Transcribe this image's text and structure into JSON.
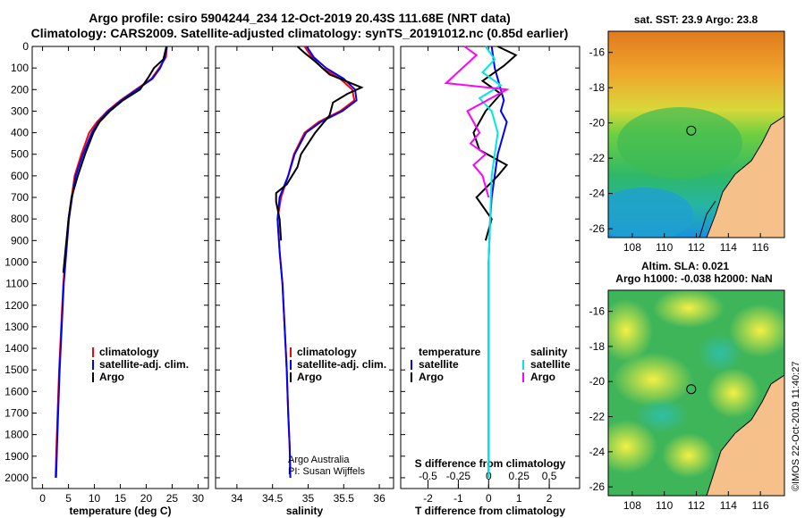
{
  "header": {
    "title_line1": "Argo profile: csiro 5904244_234 12-Oct-2019 20.43S 111.68E (NRT data)",
    "title_line2": "Climatology: CARS2009. Satellite-adjusted climatology: synTS_20191012.nc (0.85d earlier)"
  },
  "credits": {
    "program": "Argo Australia",
    "pi": "PI: Susan Wijffels",
    "stamp": "©IMOS 22-Oct-2019 11:40:27"
  },
  "colors": {
    "climatology": "#ff0000",
    "satellite_adj": "#0000ff",
    "argo": "#000000",
    "sat_salinity": "#00e5e5",
    "argo_salinity_diff": "#ff00ff",
    "land": "#f5c08a"
  },
  "chart_data": [
    {
      "type": "line",
      "name": "temperature-panel",
      "xlabel": "temperature (deg C)",
      "ylabel": "",
      "xlim": [
        -2,
        32
      ],
      "xticks": [
        0,
        5,
        10,
        15,
        20,
        25,
        30
      ],
      "ylim": [
        2050,
        0
      ],
      "yticks": [
        0,
        100,
        200,
        300,
        400,
        500,
        600,
        700,
        800,
        900,
        1000,
        1100,
        1200,
        1300,
        1400,
        1500,
        1600,
        1700,
        1800,
        1900,
        2000
      ],
      "legend": [
        "climatology",
        "satellite-adj. clim.",
        "Argo"
      ],
      "legend_position": "lower-right",
      "series": [
        {
          "name": "climatology",
          "color": "#ff0000",
          "x": [
            24.0,
            23.8,
            22.5,
            21.0,
            18.0,
            15.0,
            12.5,
            10.5,
            9.0,
            7.5,
            6.2,
            5.6,
            5.0,
            4.5,
            4.0,
            3.6,
            3.2,
            2.9,
            2.7,
            2.5
          ],
          "y": [
            0,
            50,
            100,
            150,
            200,
            250,
            300,
            350,
            400,
            500,
            600,
            700,
            800,
            950,
            1100,
            1300,
            1500,
            1700,
            1850,
            2000
          ]
        },
        {
          "name": "satellite-adj. clim.",
          "color": "#0000ff",
          "x": [
            24.0,
            23.6,
            22.7,
            21.2,
            18.2,
            15.2,
            12.7,
            10.8,
            9.5,
            7.8,
            6.4,
            5.7,
            5.1,
            4.6,
            4.1,
            3.7,
            3.3,
            3.0,
            2.8,
            2.6
          ],
          "y": [
            0,
            50,
            100,
            150,
            200,
            250,
            300,
            350,
            400,
            500,
            600,
            700,
            800,
            950,
            1100,
            1300,
            1500,
            1700,
            1850,
            2000
          ]
        },
        {
          "name": "Argo",
          "color": "#000000",
          "x": [
            23.9,
            23.3,
            21.5,
            20.5,
            18.8,
            15.5,
            13.0,
            11.0,
            9.8,
            8.2,
            6.8,
            5.6,
            5.0,
            4.4,
            4.0
          ],
          "y": [
            0,
            60,
            100,
            140,
            200,
            250,
            300,
            350,
            400,
            500,
            600,
            700,
            800,
            950,
            1050
          ]
        }
      ]
    },
    {
      "type": "line",
      "name": "salinity-panel",
      "xlabel": "salinity",
      "xlim": [
        33.7,
        36.2
      ],
      "xticks": [
        34,
        34.5,
        35,
        35.5,
        36
      ],
      "ylim": [
        2050,
        0
      ],
      "legend": [
        "climatology",
        "satellite-adj. clim.",
        "Argo"
      ],
      "legend_position": "lower-right",
      "series": [
        {
          "name": "climatology",
          "color": "#ff0000",
          "x": [
            34.95,
            35.05,
            35.2,
            35.45,
            35.62,
            35.65,
            35.45,
            35.15,
            34.95,
            34.8,
            34.72,
            34.62,
            34.57,
            34.6,
            34.64,
            34.67,
            34.7,
            34.72,
            34.74,
            34.75
          ],
          "y": [
            0,
            50,
            100,
            150,
            200,
            250,
            300,
            350,
            400,
            500,
            600,
            700,
            800,
            950,
            1100,
            1300,
            1500,
            1700,
            1850,
            2000
          ]
        },
        {
          "name": "satellite-adj. clim.",
          "color": "#0000ff",
          "x": [
            34.98,
            35.08,
            35.25,
            35.5,
            35.66,
            35.68,
            35.48,
            35.18,
            34.97,
            34.81,
            34.72,
            34.6,
            34.57,
            34.6,
            34.64,
            34.67,
            34.7,
            34.72,
            34.74,
            34.75
          ],
          "y": [
            0,
            50,
            100,
            150,
            200,
            250,
            300,
            350,
            400,
            500,
            600,
            700,
            800,
            950,
            1100,
            1300,
            1500,
            1700,
            1850,
            2000
          ]
        },
        {
          "name": "Argo",
          "color": "#000000",
          "x": [
            34.85,
            34.95,
            35.1,
            35.3,
            35.75,
            35.55,
            35.35,
            35.3,
            35.1,
            34.9,
            34.85,
            34.7,
            34.55,
            34.55,
            34.6,
            34.62
          ],
          "y": [
            0,
            30,
            70,
            130,
            190,
            220,
            260,
            320,
            400,
            500,
            560,
            640,
            680,
            720,
            800,
            900
          ]
        }
      ]
    },
    {
      "type": "line",
      "name": "difference-panel",
      "xlabel": "T difference from climatology",
      "x2label": "S difference from climatology",
      "xlim": [
        -2.9,
        3.0
      ],
      "xticks": [
        -2,
        -1,
        0,
        1,
        2
      ],
      "x2ticks": [
        -0.5,
        -0.25,
        0,
        0.25,
        0.5
      ],
      "ylim": [
        2050,
        0
      ],
      "legend_temperature_header": "temperature",
      "legend_salinity_header": "salinity",
      "legend_entries": [
        "satellite",
        "Argo"
      ],
      "series": [
        {
          "name": "temperature satellite",
          "color": "#0000ff",
          "x": [
            0.1,
            0.2,
            0.4,
            0.5,
            0.4,
            0.6,
            0.5,
            0.3,
            0.2,
            0.1,
            0.05,
            0.0,
            0.0,
            0.0,
            0.0,
            0.0
          ],
          "y": [
            0,
            100,
            200,
            250,
            300,
            350,
            400,
            500,
            600,
            700,
            800,
            1000,
            1200,
            1500,
            1800,
            2000
          ]
        },
        {
          "name": "temperature Argo",
          "color": "#000000",
          "x": [
            0.3,
            0.9,
            0.5,
            -0.2,
            0.4,
            -0.1,
            -0.5,
            -0.3,
            0.6,
            0.3,
            -0.4,
            0.1,
            -0.1
          ],
          "y": [
            0,
            40,
            90,
            160,
            220,
            300,
            400,
            480,
            550,
            600,
            700,
            800,
            900
          ]
        },
        {
          "name": "salinity satellite",
          "color": "#00e5e5",
          "x": [
            -0.1,
            0.2,
            -0.2,
            0.4,
            -0.3,
            0.1,
            0.3,
            0.2,
            0.1,
            0.05,
            0.0,
            0.0,
            0.0
          ],
          "y": [
            0,
            60,
            120,
            180,
            240,
            300,
            400,
            500,
            600,
            800,
            1000,
            1500,
            2000
          ]
        },
        {
          "name": "salinity Argo",
          "color": "#ff00ff",
          "x": [
            -0.8,
            -0.4,
            -1.4,
            0.6,
            -0.7,
            -0.3,
            -0.6,
            -0.1,
            -0.5,
            -0.2,
            0.0
          ],
          "y": [
            0,
            40,
            170,
            200,
            300,
            400,
            450,
            500,
            550,
            600,
            700
          ]
        }
      ]
    },
    {
      "type": "heatmap",
      "name": "sst-map",
      "title": "sat. SST: 23.9 Argo: 23.8",
      "xticks": [
        108,
        110,
        112,
        114,
        116
      ],
      "yticks": [
        -16,
        -18,
        -20,
        -22,
        -24,
        -26
      ],
      "xlim": [
        106.5,
        117.5
      ],
      "ylim": [
        -26.5,
        -14.8
      ],
      "marker": {
        "lon": 111.68,
        "lat": -20.43
      }
    },
    {
      "type": "heatmap",
      "name": "sla-map",
      "title": "Altim. SLA: 0.021",
      "subtitle": "Argo h1000: -0.038 h2000: NaN",
      "xticks": [
        108,
        110,
        112,
        114,
        116
      ],
      "yticks": [
        -16,
        -18,
        -20,
        -22,
        -24,
        -26
      ],
      "xlim": [
        106.5,
        117.5
      ],
      "ylim": [
        -26.5,
        -14.8
      ],
      "marker": {
        "lon": 111.68,
        "lat": -20.43
      }
    }
  ]
}
